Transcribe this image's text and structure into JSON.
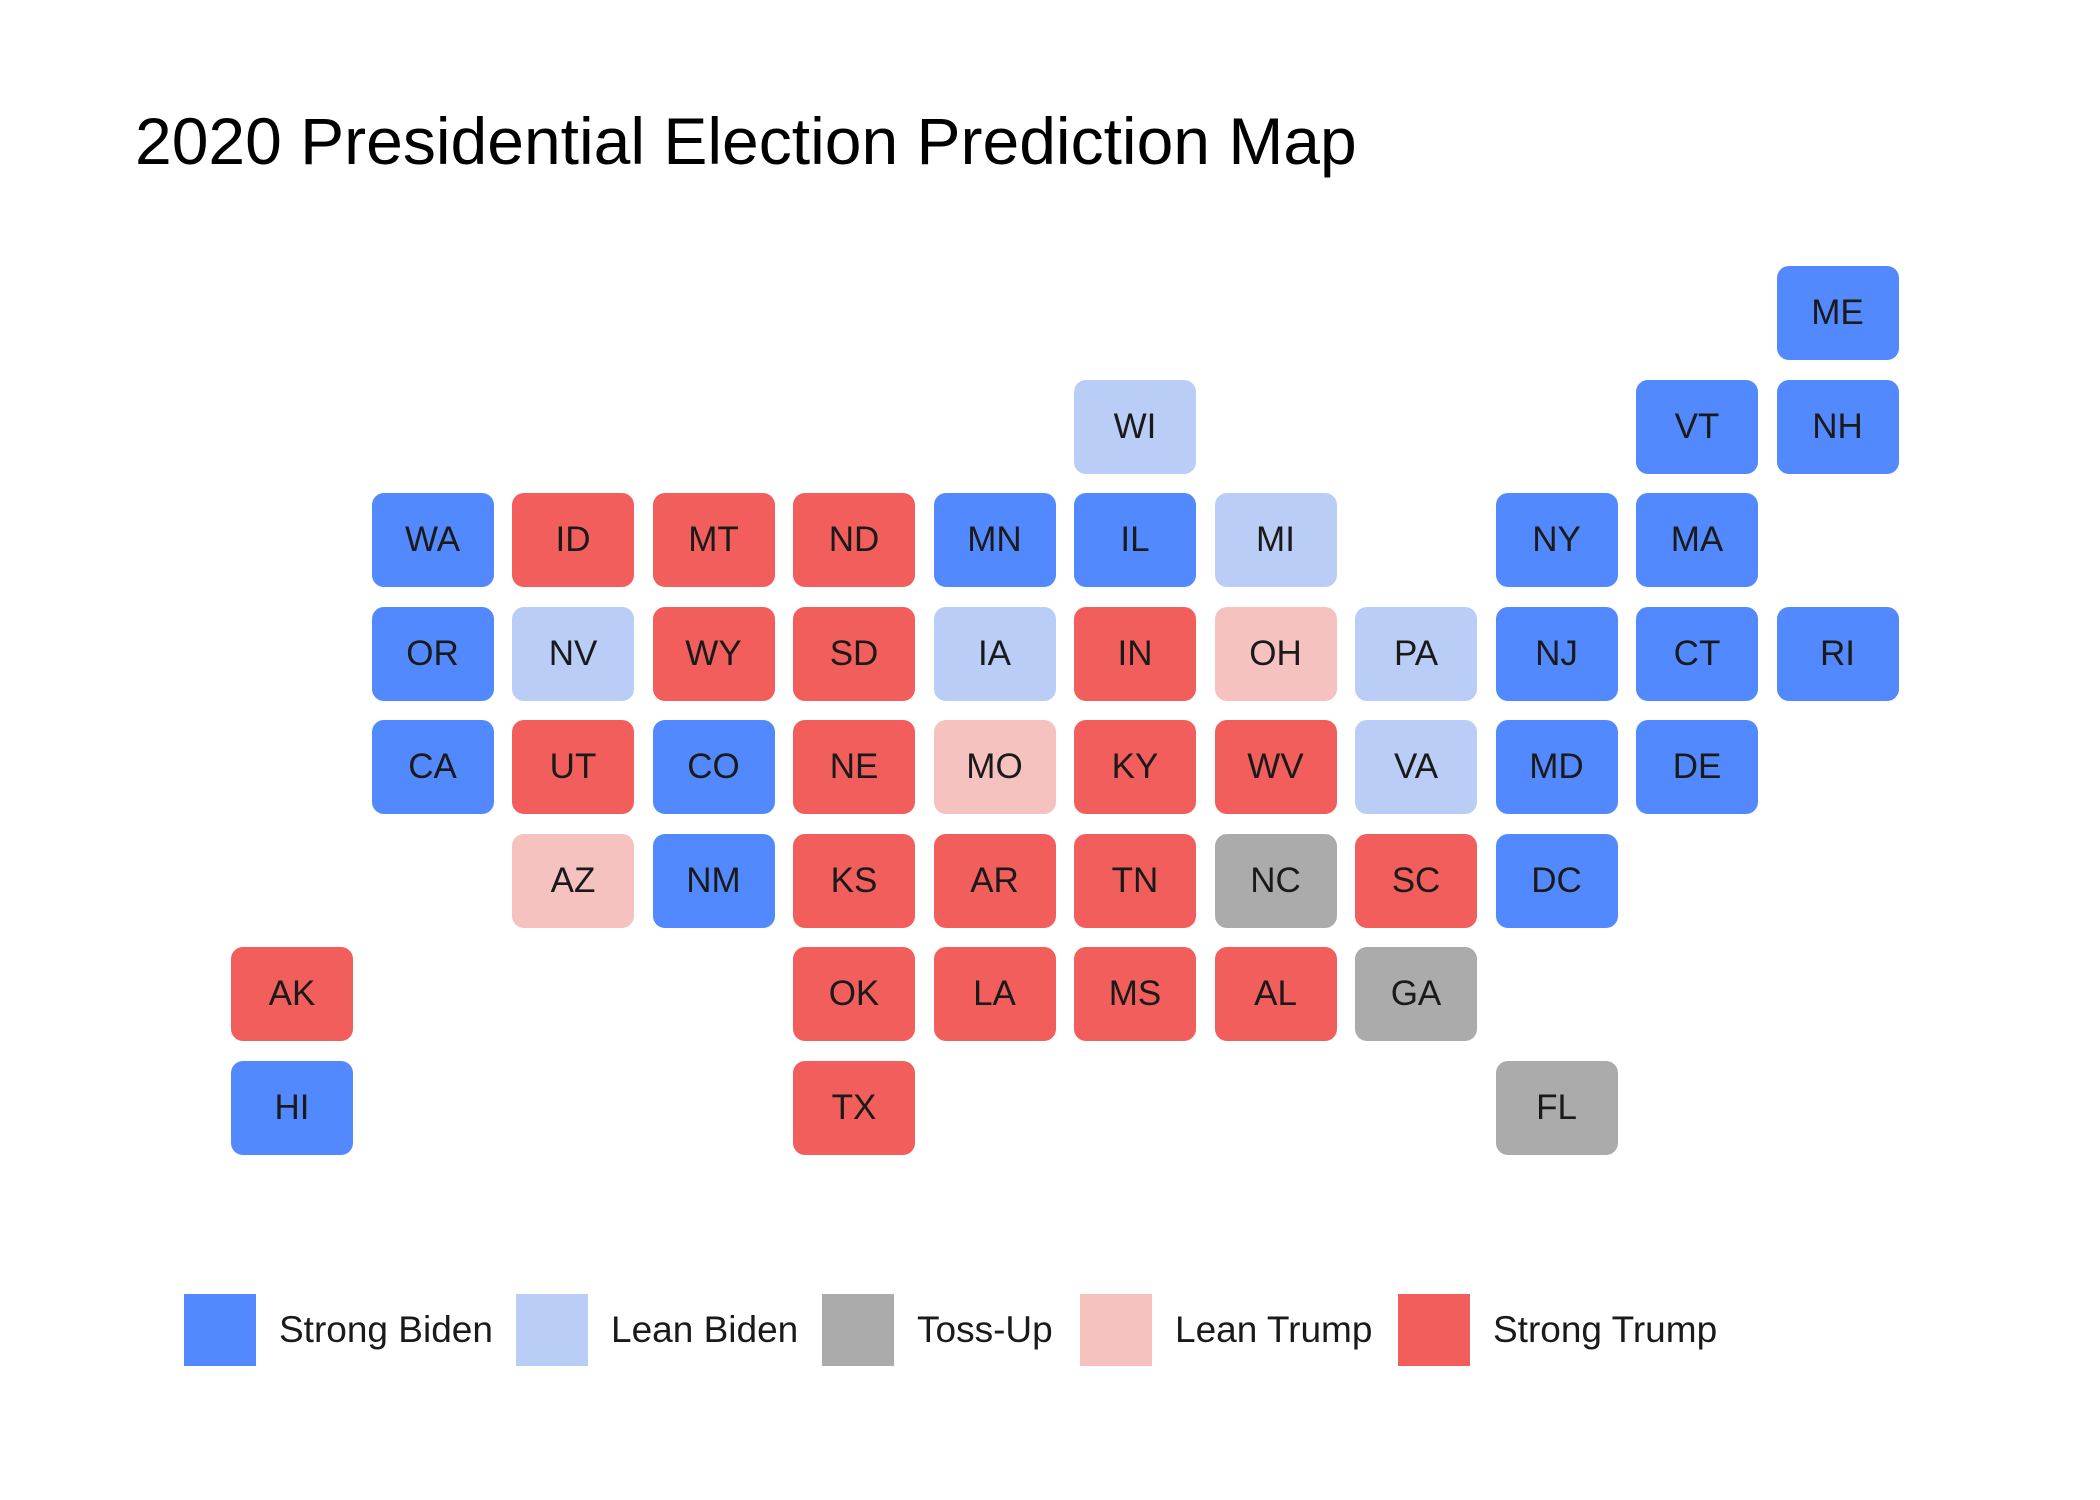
{
  "title": "2020 Presidential Election Prediction Map",
  "colors": {
    "strong_biden": "#5289FF",
    "lean_biden": "#BACDF6",
    "toss_up": "#ABABAB",
    "lean_trump": "#F6C2C0",
    "strong_trump": "#F25E5B"
  },
  "legend": [
    {
      "key": "strong_biden",
      "label": "Strong Biden"
    },
    {
      "key": "lean_biden",
      "label": "Lean Biden"
    },
    {
      "key": "toss_up",
      "label": "Toss-Up"
    },
    {
      "key": "lean_trump",
      "label": "Lean Trump"
    },
    {
      "key": "strong_trump",
      "label": "Strong Trump"
    }
  ],
  "states": [
    {
      "abbr": "ME",
      "col": 11,
      "row": 0,
      "rating": "strong_biden"
    },
    {
      "abbr": "WI",
      "col": 6,
      "row": 1,
      "rating": "lean_biden"
    },
    {
      "abbr": "VT",
      "col": 10,
      "row": 1,
      "rating": "strong_biden"
    },
    {
      "abbr": "NH",
      "col": 11,
      "row": 1,
      "rating": "strong_biden"
    },
    {
      "abbr": "WA",
      "col": 1,
      "row": 2,
      "rating": "strong_biden"
    },
    {
      "abbr": "ID",
      "col": 2,
      "row": 2,
      "rating": "strong_trump"
    },
    {
      "abbr": "MT",
      "col": 3,
      "row": 2,
      "rating": "strong_trump"
    },
    {
      "abbr": "ND",
      "col": 4,
      "row": 2,
      "rating": "strong_trump"
    },
    {
      "abbr": "MN",
      "col": 5,
      "row": 2,
      "rating": "strong_biden"
    },
    {
      "abbr": "IL",
      "col": 6,
      "row": 2,
      "rating": "strong_biden"
    },
    {
      "abbr": "MI",
      "col": 7,
      "row": 2,
      "rating": "lean_biden"
    },
    {
      "abbr": "NY",
      "col": 9,
      "row": 2,
      "rating": "strong_biden"
    },
    {
      "abbr": "MA",
      "col": 10,
      "row": 2,
      "rating": "strong_biden"
    },
    {
      "abbr": "OR",
      "col": 1,
      "row": 3,
      "rating": "strong_biden"
    },
    {
      "abbr": "NV",
      "col": 2,
      "row": 3,
      "rating": "lean_biden"
    },
    {
      "abbr": "WY",
      "col": 3,
      "row": 3,
      "rating": "strong_trump"
    },
    {
      "abbr": "SD",
      "col": 4,
      "row": 3,
      "rating": "strong_trump"
    },
    {
      "abbr": "IA",
      "col": 5,
      "row": 3,
      "rating": "lean_biden"
    },
    {
      "abbr": "IN",
      "col": 6,
      "row": 3,
      "rating": "strong_trump"
    },
    {
      "abbr": "OH",
      "col": 7,
      "row": 3,
      "rating": "lean_trump"
    },
    {
      "abbr": "PA",
      "col": 8,
      "row": 3,
      "rating": "lean_biden"
    },
    {
      "abbr": "NJ",
      "col": 9,
      "row": 3,
      "rating": "strong_biden"
    },
    {
      "abbr": "CT",
      "col": 10,
      "row": 3,
      "rating": "strong_biden"
    },
    {
      "abbr": "RI",
      "col": 11,
      "row": 3,
      "rating": "strong_biden"
    },
    {
      "abbr": "CA",
      "col": 1,
      "row": 4,
      "rating": "strong_biden"
    },
    {
      "abbr": "UT",
      "col": 2,
      "row": 4,
      "rating": "strong_trump"
    },
    {
      "abbr": "CO",
      "col": 3,
      "row": 4,
      "rating": "strong_biden"
    },
    {
      "abbr": "NE",
      "col": 4,
      "row": 4,
      "rating": "strong_trump"
    },
    {
      "abbr": "MO",
      "col": 5,
      "row": 4,
      "rating": "lean_trump"
    },
    {
      "abbr": "KY",
      "col": 6,
      "row": 4,
      "rating": "strong_trump"
    },
    {
      "abbr": "WV",
      "col": 7,
      "row": 4,
      "rating": "strong_trump"
    },
    {
      "abbr": "VA",
      "col": 8,
      "row": 4,
      "rating": "lean_biden"
    },
    {
      "abbr": "MD",
      "col": 9,
      "row": 4,
      "rating": "strong_biden"
    },
    {
      "abbr": "DE",
      "col": 10,
      "row": 4,
      "rating": "strong_biden"
    },
    {
      "abbr": "AZ",
      "col": 2,
      "row": 5,
      "rating": "lean_trump"
    },
    {
      "abbr": "NM",
      "col": 3,
      "row": 5,
      "rating": "strong_biden"
    },
    {
      "abbr": "KS",
      "col": 4,
      "row": 5,
      "rating": "strong_trump"
    },
    {
      "abbr": "AR",
      "col": 5,
      "row": 5,
      "rating": "strong_trump"
    },
    {
      "abbr": "TN",
      "col": 6,
      "row": 5,
      "rating": "strong_trump"
    },
    {
      "abbr": "NC",
      "col": 7,
      "row": 5,
      "rating": "toss_up"
    },
    {
      "abbr": "SC",
      "col": 8,
      "row": 5,
      "rating": "strong_trump"
    },
    {
      "abbr": "DC",
      "col": 9,
      "row": 5,
      "rating": "strong_biden"
    },
    {
      "abbr": "AK",
      "col": 0,
      "row": 6,
      "rating": "strong_trump"
    },
    {
      "abbr": "OK",
      "col": 4,
      "row": 6,
      "rating": "strong_trump"
    },
    {
      "abbr": "LA",
      "col": 5,
      "row": 6,
      "rating": "strong_trump"
    },
    {
      "abbr": "MS",
      "col": 6,
      "row": 6,
      "rating": "strong_trump"
    },
    {
      "abbr": "AL",
      "col": 7,
      "row": 6,
      "rating": "strong_trump"
    },
    {
      "abbr": "GA",
      "col": 8,
      "row": 6,
      "rating": "toss_up"
    },
    {
      "abbr": "HI",
      "col": 0,
      "row": 7,
      "rating": "strong_biden"
    },
    {
      "abbr": "TX",
      "col": 4,
      "row": 7,
      "rating": "strong_trump"
    },
    {
      "abbr": "FL",
      "col": 9,
      "row": 7,
      "rating": "toss_up"
    }
  ]
}
